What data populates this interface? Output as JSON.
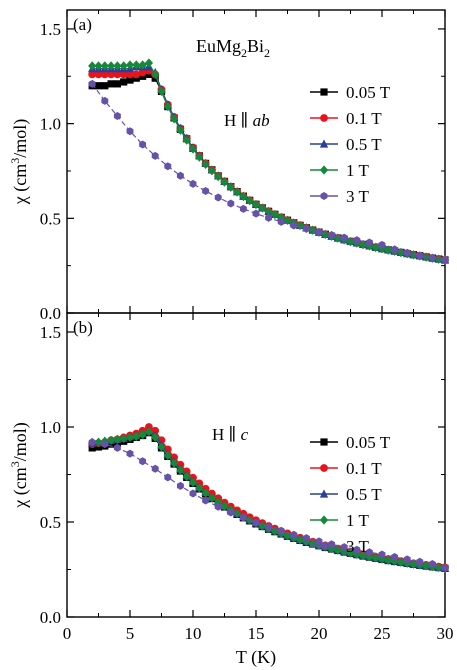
{
  "chart_data": [
    {
      "type": "line",
      "panel_label": "(a)",
      "annotations": [
        "EuMg2Bi2",
        "H ∥ ab"
      ],
      "xlabel": "T (K)",
      "ylabel": "χ (cm3/mol)",
      "xlim": [
        0,
        30
      ],
      "ylim": [
        0,
        1.6
      ],
      "xticks": [
        "0",
        "5",
        "10",
        "15",
        "20",
        "25",
        "30"
      ],
      "yticks": [
        "0.0",
        "0.5",
        "1.0",
        "1.5"
      ],
      "legend_position": "right",
      "grid": false,
      "x": [
        2,
        2.5,
        3,
        3.5,
        4,
        4.5,
        5,
        5.5,
        6,
        6.5,
        7,
        7.5,
        8,
        8.5,
        9,
        9.5,
        10,
        10.5,
        11,
        11.5,
        12,
        12.5,
        13,
        13.5,
        14,
        14.5,
        15,
        15.5,
        16,
        16.5,
        17,
        17.5,
        18,
        18.5,
        19,
        19.5,
        20,
        20.5,
        21,
        21.5,
        22,
        22.5,
        23,
        23.5,
        24,
        24.5,
        25,
        25.5,
        26,
        26.5,
        27,
        27.5,
        28,
        28.5,
        29,
        29.5,
        30
      ],
      "series": [
        {
          "name": "0.05 T",
          "color": "#000000",
          "marker": "square",
          "values": [
            1.2,
            1.2,
            1.2,
            1.21,
            1.21,
            1.22,
            1.23,
            1.24,
            1.25,
            1.26,
            1.24,
            1.17,
            1.09,
            1.03,
            0.97,
            0.92,
            0.87,
            0.83,
            0.79,
            0.756,
            0.724,
            0.695,
            0.667,
            0.641,
            0.617,
            0.595,
            0.574,
            0.555,
            0.537,
            0.521,
            0.505,
            0.49,
            0.476,
            0.463,
            0.45,
            0.438,
            0.427,
            0.416,
            0.406,
            0.396,
            0.387,
            0.378,
            0.37,
            0.362,
            0.355,
            0.347,
            0.34,
            0.333,
            0.327,
            0.32,
            0.314,
            0.308,
            0.302,
            0.296,
            0.29,
            0.285,
            0.28
          ]
        },
        {
          "name": "0.1 T",
          "color": "#e8141c",
          "marker": "circle",
          "values": [
            1.26,
            1.26,
            1.26,
            1.26,
            1.26,
            1.26,
            1.26,
            1.26,
            1.27,
            1.28,
            1.26,
            1.18,
            1.1,
            1.035,
            0.975,
            0.922,
            0.873,
            0.83,
            0.79,
            0.756,
            0.724,
            0.695,
            0.667,
            0.641,
            0.617,
            0.595,
            0.574,
            0.555,
            0.537,
            0.521,
            0.505,
            0.49,
            0.476,
            0.463,
            0.45,
            0.438,
            0.427,
            0.416,
            0.406,
            0.396,
            0.387,
            0.378,
            0.37,
            0.362,
            0.355,
            0.347,
            0.34,
            0.333,
            0.327,
            0.32,
            0.314,
            0.308,
            0.302,
            0.296,
            0.29,
            0.285,
            0.28
          ]
        },
        {
          "name": "0.5 T",
          "color": "#2a3f9a",
          "marker": "triangle",
          "values": [
            1.29,
            1.29,
            1.29,
            1.29,
            1.29,
            1.29,
            1.29,
            1.3,
            1.3,
            1.3,
            1.27,
            1.18,
            1.1,
            1.035,
            0.975,
            0.922,
            0.873,
            0.83,
            0.79,
            0.756,
            0.724,
            0.695,
            0.667,
            0.641,
            0.617,
            0.595,
            0.574,
            0.555,
            0.537,
            0.521,
            0.505,
            0.49,
            0.476,
            0.463,
            0.45,
            0.438,
            0.427,
            0.416,
            0.406,
            0.396,
            0.387,
            0.378,
            0.37,
            0.362,
            0.355,
            0.347,
            0.34,
            0.333,
            0.327,
            0.32,
            0.314,
            0.308,
            0.302,
            0.296,
            0.29,
            0.285,
            0.28
          ]
        },
        {
          "name": "1 T",
          "color": "#15883a",
          "marker": "diamond",
          "values": [
            1.305,
            1.305,
            1.305,
            1.305,
            1.305,
            1.305,
            1.31,
            1.31,
            1.31,
            1.32,
            1.26,
            1.17,
            1.09,
            1.025,
            0.965,
            0.913,
            0.866,
            0.823,
            0.785,
            0.751,
            0.72,
            0.691,
            0.664,
            0.639,
            0.615,
            0.593,
            0.573,
            0.554,
            0.536,
            0.52,
            0.504,
            0.489,
            0.475,
            0.462,
            0.449,
            0.437,
            0.426,
            0.415,
            0.405,
            0.395,
            0.386,
            0.377,
            0.369,
            0.361,
            0.354,
            0.346,
            0.339,
            0.332,
            0.326,
            0.319,
            0.313,
            0.307,
            0.301,
            0.295,
            0.289,
            0.284,
            0.279
          ]
        },
        {
          "name": "3 T",
          "color": "#6652a8",
          "marker": "hexagon",
          "values": [
            1.21,
            null,
            1.12,
            null,
            1.04,
            null,
            0.96,
            null,
            0.89,
            null,
            0.83,
            null,
            0.775,
            null,
            0.725,
            null,
            0.682,
            null,
            0.644,
            null,
            0.61,
            null,
            0.578,
            null,
            0.55,
            null,
            0.525,
            null,
            0.502,
            null,
            0.481,
            null,
            0.462,
            null,
            0.444,
            null,
            0.428,
            null,
            0.412,
            null,
            0.398,
            null,
            0.385,
            null,
            0.372,
            null,
            0.36,
            null,
            0.336,
            null,
            0.318,
            null,
            0.303,
            null,
            0.292,
            null,
            0.28
          ]
        }
      ]
    },
    {
      "type": "line",
      "panel_label": "(b)",
      "annotations": [
        "H ∥ c"
      ],
      "xlabel": "T (K)",
      "ylabel": "χ (cm3/mol)",
      "xlim": [
        0,
        30
      ],
      "ylim": [
        0,
        1.6
      ],
      "xticks": [
        "0",
        "5",
        "10",
        "15",
        "20",
        "25",
        "30"
      ],
      "yticks": [
        "0.0",
        "0.5",
        "1.0",
        "1.5"
      ],
      "legend_position": "right",
      "grid": false,
      "x": [
        2,
        2.5,
        3,
        3.5,
        4,
        4.5,
        5,
        5.5,
        6,
        6.5,
        7,
        7.5,
        8,
        8.5,
        9,
        9.5,
        10,
        10.5,
        11,
        11.5,
        12,
        12.5,
        13,
        13.5,
        14,
        14.5,
        15,
        15.5,
        16,
        16.5,
        17,
        17.5,
        18,
        18.5,
        19,
        19.5,
        20,
        20.5,
        21,
        21.5,
        22,
        22.5,
        23,
        23.5,
        24,
        24.5,
        25,
        25.5,
        26,
        26.5,
        27,
        27.5,
        28,
        28.5,
        29,
        29.5,
        30
      ],
      "series": [
        {
          "name": "0.05 T",
          "color": "#000000",
          "marker": "square",
          "values": [
            0.89,
            0.895,
            0.9,
            0.91,
            0.915,
            0.925,
            0.935,
            0.945,
            0.955,
            0.97,
            0.94,
            0.89,
            0.845,
            0.805,
            0.768,
            0.735,
            0.703,
            0.674,
            0.648,
            0.623,
            0.6,
            0.579,
            0.559,
            0.54,
            0.522,
            0.506,
            0.49,
            0.476,
            0.462,
            0.449,
            0.437,
            0.425,
            0.414,
            0.403,
            0.393,
            0.384,
            0.375,
            0.366,
            0.358,
            0.35,
            0.342,
            0.335,
            0.328,
            0.321,
            0.315,
            0.309,
            0.303,
            0.297,
            0.292,
            0.287,
            0.282,
            0.277,
            0.272,
            0.268,
            0.264,
            0.26,
            0.256
          ]
        },
        {
          "name": "0.1 T",
          "color": "#e8141c",
          "marker": "circle",
          "values": [
            0.91,
            0.915,
            0.92,
            0.93,
            0.935,
            0.945,
            0.955,
            0.965,
            0.98,
            1.0,
            0.98,
            0.93,
            0.882,
            0.84,
            0.801,
            0.766,
            0.733,
            0.703,
            0.675,
            0.649,
            0.625,
            0.602,
            0.581,
            0.561,
            0.543,
            0.525,
            0.509,
            0.494,
            0.479,
            0.465,
            0.452,
            0.44,
            0.428,
            0.417,
            0.406,
            0.396,
            0.386,
            0.377,
            0.368,
            0.36,
            0.352,
            0.344,
            0.337,
            0.33,
            0.323,
            0.317,
            0.311,
            0.305,
            0.299,
            0.294,
            0.288,
            0.283,
            0.278,
            0.274,
            0.269,
            0.265,
            0.261
          ]
        },
        {
          "name": "0.5 T",
          "color": "#2a3f9a",
          "marker": "triangle",
          "values": [
            0.915,
            0.92,
            0.925,
            0.93,
            0.935,
            0.94,
            0.95,
            0.955,
            0.965,
            0.98,
            0.955,
            0.905,
            0.858,
            0.817,
            0.779,
            0.745,
            0.713,
            0.683,
            0.656,
            0.63,
            0.607,
            0.585,
            0.565,
            0.546,
            0.528,
            0.511,
            0.495,
            0.48,
            0.466,
            0.453,
            0.441,
            0.429,
            0.418,
            0.407,
            0.397,
            0.387,
            0.378,
            0.369,
            0.361,
            0.353,
            0.345,
            0.338,
            0.331,
            0.324,
            0.318,
            0.312,
            0.306,
            0.3,
            0.295,
            0.289,
            0.284,
            0.279,
            0.275,
            0.27,
            0.266,
            0.262,
            0.258
          ]
        },
        {
          "name": "1 T",
          "color": "#15883a",
          "marker": "diamond",
          "values": [
            0.92,
            0.92,
            0.925,
            0.93,
            0.935,
            0.94,
            0.945,
            0.95,
            0.96,
            0.975,
            0.945,
            0.895,
            0.85,
            0.81,
            0.773,
            0.739,
            0.708,
            0.679,
            0.652,
            0.627,
            0.604,
            0.583,
            0.563,
            0.544,
            0.526,
            0.509,
            0.494,
            0.479,
            0.465,
            0.452,
            0.44,
            0.428,
            0.417,
            0.406,
            0.396,
            0.386,
            0.377,
            0.368,
            0.36,
            0.352,
            0.344,
            0.337,
            0.33,
            0.323,
            0.317,
            0.311,
            0.305,
            0.299,
            0.294,
            0.288,
            0.283,
            0.278,
            0.274,
            0.269,
            0.265,
            0.261,
            0.257
          ]
        },
        {
          "name": "3 T",
          "color": "#6652a8",
          "marker": "hexagon",
          "values": [
            0.92,
            null,
            0.91,
            null,
            0.89,
            null,
            0.86,
            null,
            0.82,
            null,
            0.78,
            null,
            0.735,
            null,
            0.69,
            null,
            0.65,
            null,
            0.613,
            null,
            0.58,
            null,
            0.55,
            null,
            0.523,
            null,
            0.497,
            null,
            0.474,
            null,
            0.453,
            null,
            0.433,
            null,
            0.415,
            null,
            0.398,
            null,
            0.383,
            null,
            0.368,
            null,
            0.354,
            null,
            0.341,
            null,
            0.329,
            null,
            0.316,
            null,
            0.303,
            null,
            0.291,
            null,
            0.279,
            null,
            0.258
          ]
        }
      ]
    }
  ]
}
